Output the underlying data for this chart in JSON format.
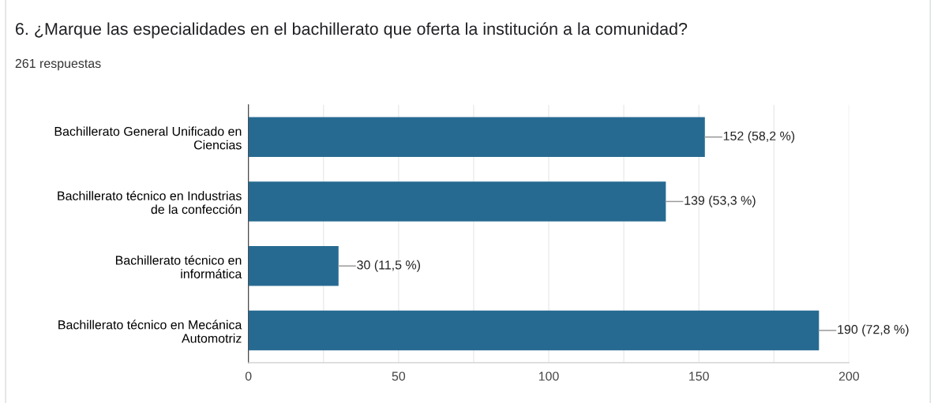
{
  "chart_data": {
    "type": "bar",
    "orientation": "horizontal",
    "title": "6. ¿Marque las especialidades en el bachillerato que oferta la institución a la comunidad?",
    "subtitle": "261 respuestas",
    "categories": [
      "Bachillerato General Unificado en\nCiencias",
      "Bachillerato técnico en Industrias\nde la confección",
      "Bachillerato técnico en\ninformática",
      "Bachillerato técnico en Mecánica\nAutomotriz"
    ],
    "values": [
      152,
      139,
      30,
      190
    ],
    "value_labels": [
      "152 (58,2 %)",
      "139 (53,3 %)",
      "30 (11,5 %)",
      "190 (72,8 %)"
    ],
    "color": "#276a91",
    "xlim": [
      0,
      200
    ],
    "xticks": [
      0,
      {
        "value": 25,
        "label": null
      },
      50,
      {
        "value": 75,
        "label": null
      },
      100,
      {
        "value": 125,
        "label": null
      },
      150,
      {
        "value": 175,
        "label": null
      },
      200
    ],
    "grid": "x",
    "legend": false
  }
}
